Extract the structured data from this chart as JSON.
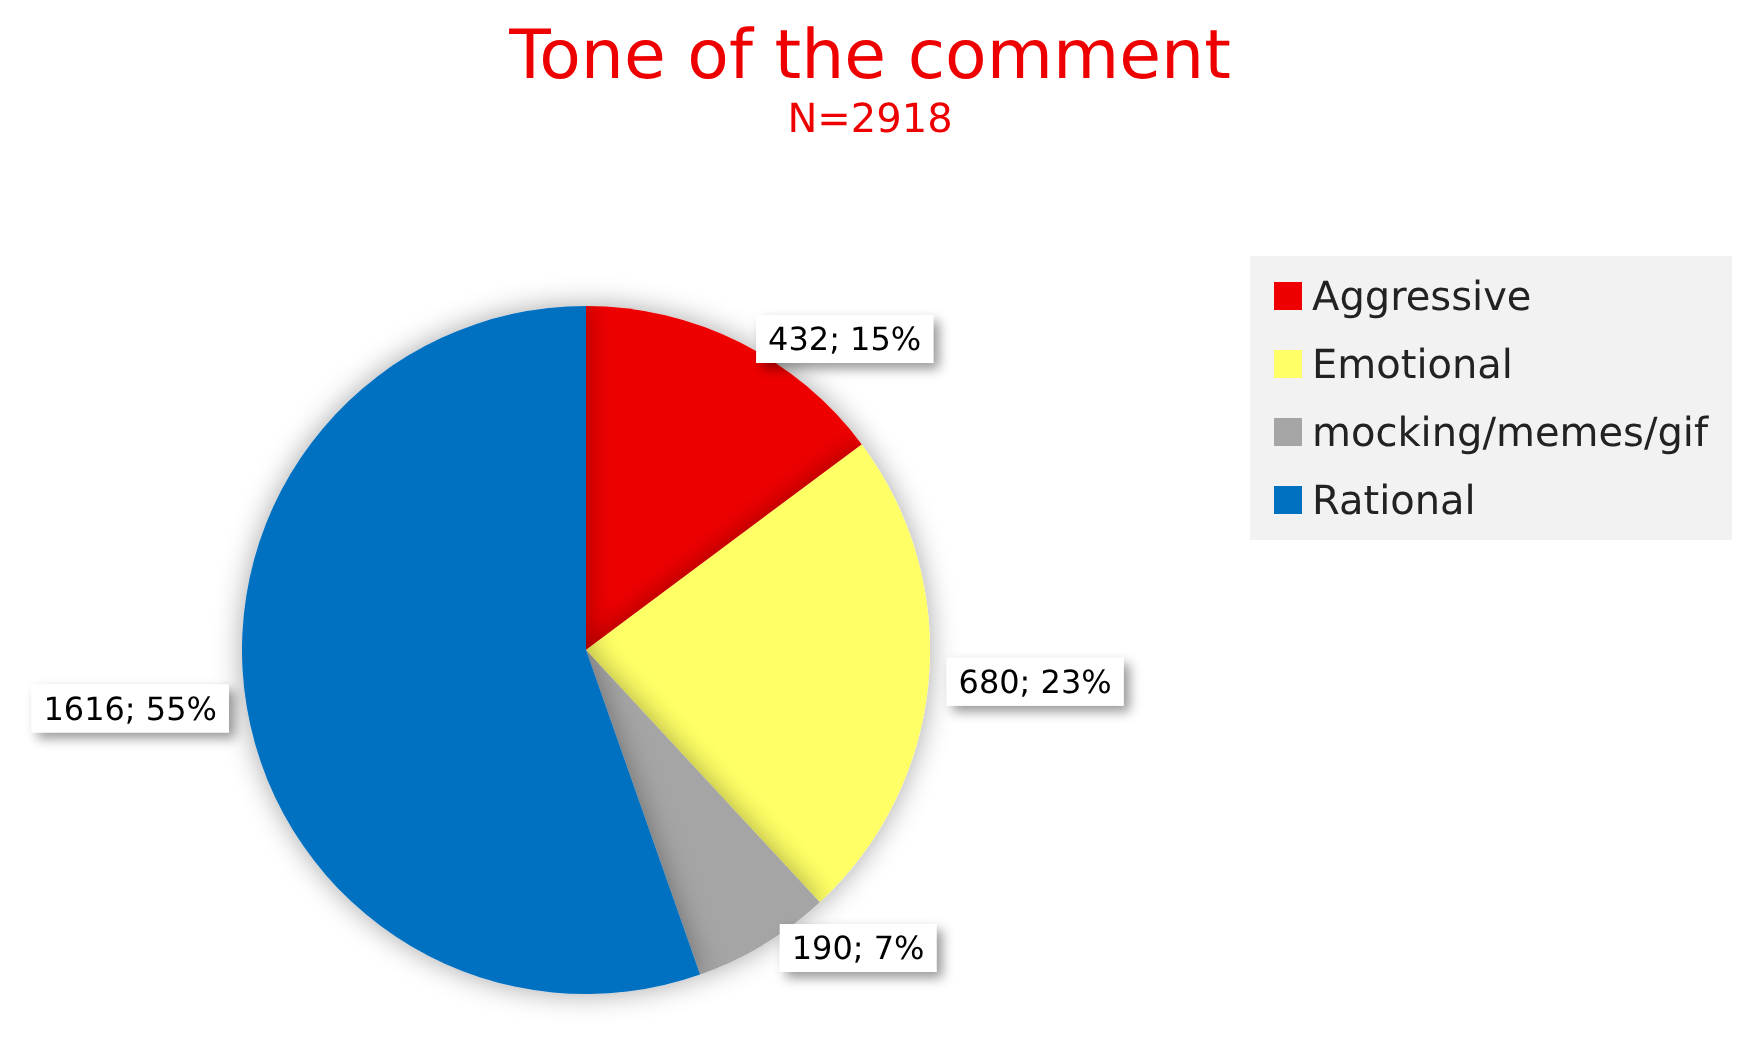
{
  "chart_data": {
    "type": "pie",
    "title": "Tone of the comment",
    "subtitle": "N=2918",
    "categories": [
      "Aggressive",
      "Emotional",
      "mocking/memes/gif",
      "Rational"
    ],
    "values": [
      432,
      680,
      190,
      1616
    ],
    "colors": [
      "#ee0000",
      "#ffff66",
      "#a5a5a5",
      "#0070c0"
    ],
    "value_labels": [
      "432; 15%",
      "680; 23%",
      "190; 7%",
      "1616; 55%"
    ],
    "legend": "right"
  }
}
